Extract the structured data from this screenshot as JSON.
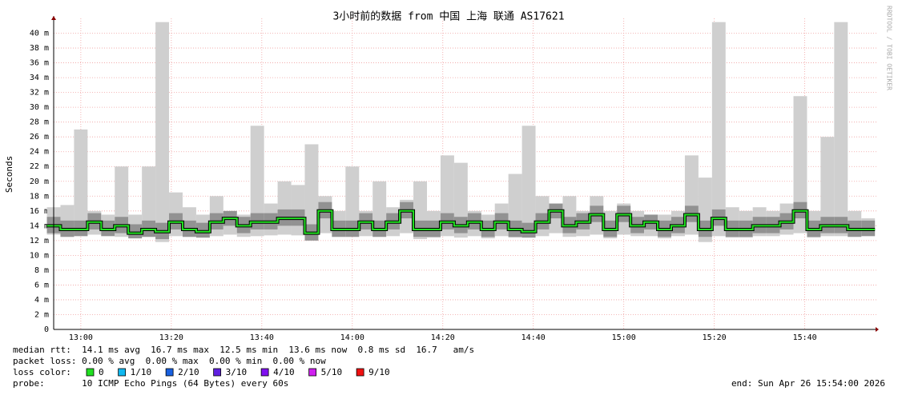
{
  "chart_data": {
    "type": "smoke",
    "title": "3小时前的数据 from 中国 上海 联通 AS17621",
    "ylabel": "Seconds",
    "credit": "RRDTOOL / TOBI OETIKER",
    "xlim": [
      "12:54",
      "15:56"
    ],
    "xticks": [
      "13:00",
      "13:20",
      "13:40",
      "14:00",
      "14:20",
      "14:40",
      "15:00",
      "15:20",
      "15:40"
    ],
    "ylim": [
      0,
      42
    ],
    "yticks": [
      0,
      {
        "value": 2,
        "label": "2 m"
      },
      {
        "value": 4,
        "label": "4 m"
      },
      {
        "value": 6,
        "label": "6 m"
      },
      {
        "value": 8,
        "label": "8 m"
      },
      {
        "value": 10,
        "label": "10 m"
      },
      {
        "value": 12,
        "label": "12 m"
      },
      {
        "value": 14,
        "label": "14 m"
      },
      {
        "value": 16,
        "label": "16 m"
      },
      {
        "value": 18,
        "label": "18 m"
      },
      {
        "value": 20,
        "label": "20 m"
      },
      {
        "value": 22,
        "label": "22 m"
      },
      {
        "value": 24,
        "label": "24 m"
      },
      {
        "value": 26,
        "label": "26 m"
      },
      {
        "value": 28,
        "label": "28 m"
      },
      {
        "value": 30,
        "label": "30 m"
      },
      {
        "value": 32,
        "label": "32 m"
      },
      {
        "value": 34,
        "label": "34 m"
      },
      {
        "value": 36,
        "label": "36 m"
      },
      {
        "value": 38,
        "label": "38 m"
      },
      {
        "value": 40,
        "label": "40 m"
      }
    ],
    "grid": true,
    "x": [
      "12:54",
      "12:57",
      "13:00",
      "13:03",
      "13:06",
      "13:09",
      "13:12",
      "13:15",
      "13:18",
      "13:21",
      "13:24",
      "13:27",
      "13:30",
      "13:33",
      "13:36",
      "13:39",
      "13:42",
      "13:45",
      "13:48",
      "13:51",
      "13:54",
      "13:57",
      "14:00",
      "14:03",
      "14:06",
      "14:09",
      "14:12",
      "14:15",
      "14:18",
      "14:21",
      "14:24",
      "14:27",
      "14:30",
      "14:33",
      "14:36",
      "14:39",
      "14:42",
      "14:45",
      "14:48",
      "14:51",
      "14:54",
      "14:57",
      "15:00",
      "15:03",
      "15:06",
      "15:09",
      "15:12",
      "15:15",
      "15:18",
      "15:21",
      "15:24",
      "15:27",
      "15:30",
      "15:33",
      "15:36",
      "15:39",
      "15:42",
      "15:45",
      "15:48",
      "15:51",
      "15:54"
    ],
    "median": [
      14,
      13.5,
      13.5,
      14.5,
      13.5,
      14,
      13,
      13.5,
      13.2,
      14.5,
      13.5,
      13.2,
      14.5,
      15,
      14,
      14.5,
      14.5,
      15,
      15,
      13,
      16,
      13.5,
      13.5,
      14.5,
      13.5,
      14.5,
      16,
      13.5,
      13.5,
      14.5,
      14,
      14.5,
      13.5,
      14.5,
      13.5,
      13.2,
      14.5,
      16,
      14,
      14.5,
      15.5,
      13.5,
      15.5,
      14,
      14.5,
      13.5,
      14,
      15.5,
      13.5,
      15,
      13.5,
      13.5,
      14,
      14,
      14.5,
      16,
      13.5,
      14,
      14,
      13.5,
      13.5
    ],
    "low": [
      12.8,
      12.5,
      12.6,
      12.8,
      12.6,
      12.5,
      12.3,
      12.5,
      11.8,
      12.6,
      12.5,
      12.4,
      12.6,
      12.8,
      12.5,
      12.6,
      12.7,
      12.8,
      12.7,
      12,
      13,
      12.5,
      12.5,
      12.6,
      12.5,
      12.6,
      13,
      12.2,
      12.4,
      12.6,
      12.4,
      12.6,
      12.3,
      12.6,
      12.4,
      12.4,
      12.6,
      13,
      12.5,
      12.6,
      12.8,
      12.3,
      12.8,
      12.6,
      12.6,
      12.3,
      12.6,
      12.8,
      11.8,
      12.6,
      12.4,
      12.4,
      12.6,
      12.6,
      12.8,
      13,
      12.4,
      12.6,
      12.6,
      12.5,
      12.6
    ],
    "high": [
      16.5,
      16.8,
      27,
      16,
      15.5,
      22,
      15.5,
      22,
      41.5,
      18.5,
      16.5,
      15.5,
      18,
      16,
      15.5,
      27.5,
      17,
      20,
      19.5,
      25,
      18,
      16,
      22,
      16,
      20,
      16.5,
      17.5,
      20,
      16,
      23.5,
      22.5,
      16,
      15.5,
      17,
      21,
      27.5,
      18,
      17,
      18,
      16,
      18,
      16,
      17,
      16,
      15.5,
      15.5,
      16,
      23.5,
      20.5,
      41.5,
      16.5,
      16,
      16.5,
      16,
      17,
      31.5,
      16,
      26,
      41.5,
      16,
      15
    ],
    "median_color": "#20e020",
    "stats": [
      "median rtt:  14.1 ms avg  16.7 ms max  12.5 ms min  13.6 ms now  0.8 ms sd  16.7   am/s",
      "packet loss: 0.00 % avg  0.00 % max  0.00 % min  0.00 % now"
    ],
    "loss_label": "loss color:",
    "loss_colors": [
      {
        "label": "0",
        "color": "#20e020"
      },
      {
        "label": "1/10",
        "color": "#10b8f0"
      },
      {
        "label": "2/10",
        "color": "#1860e0"
      },
      {
        "label": "3/10",
        "color": "#6020e0"
      },
      {
        "label": "4/10",
        "color": "#8010f0"
      },
      {
        "label": "5/10",
        "color": "#d020f0"
      },
      {
        "label": "9/10",
        "color": "#f01010"
      }
    ],
    "probe": "probe:       10 ICMP Echo Pings (64 Bytes) every 60s",
    "end": "end: Sun Apr 26 15:54:00 2026"
  }
}
